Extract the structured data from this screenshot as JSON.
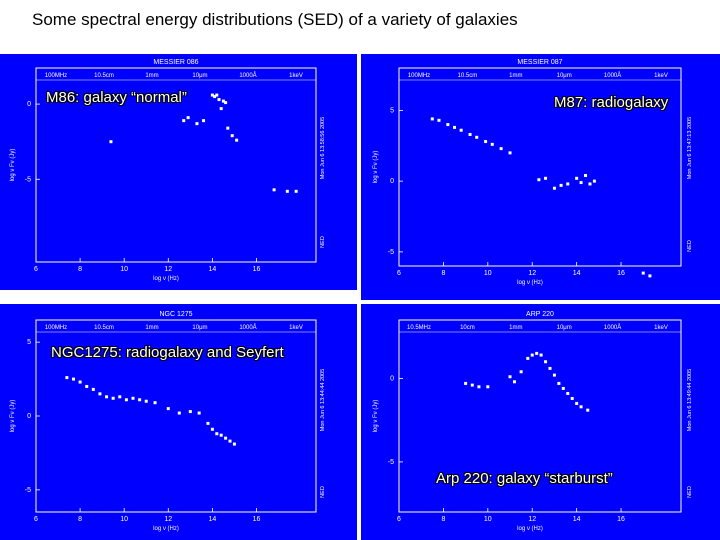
{
  "title": "Some spectral energy distributions (SED) of a variety of galaxies",
  "colors": {
    "panel_bg": "#0000ff",
    "ink": "#ffffff"
  },
  "chart_data": [
    {
      "type": "scatter",
      "label": "M86: galaxy “normal”",
      "header": "MESSIER 086",
      "top_axis": [
        "100MHz",
        "10.5cm",
        "1mm",
        "10μm",
        "1000Å",
        "1keV"
      ],
      "xlabel": "log ν (Hz)",
      "ylabel": "log ν Fν (Jy)",
      "side_text": [
        "Mon Jun 6 13:58:56 2005",
        "NED"
      ],
      "xticks": [
        6,
        8,
        10,
        12,
        14,
        16
      ],
      "yticks": [
        0,
        -5
      ],
      "xlim": [
        6,
        18.7
      ],
      "ylim": [
        -10.5,
        2.4
      ],
      "points": [
        [
          9.4,
          -2.5
        ],
        [
          12.7,
          -1.1
        ],
        [
          12.9,
          -0.9
        ],
        [
          13.3,
          -1.3
        ],
        [
          13.6,
          -1.1
        ],
        [
          14.0,
          0.6
        ],
        [
          14.1,
          0.5
        ],
        [
          14.2,
          0.6
        ],
        [
          14.3,
          0.3
        ],
        [
          14.4,
          -0.3
        ],
        [
          14.5,
          0.2
        ],
        [
          14.6,
          0.1
        ],
        [
          14.7,
          -1.6
        ],
        [
          14.9,
          -2.1
        ],
        [
          15.1,
          -2.4
        ],
        [
          16.8,
          -5.7
        ],
        [
          17.4,
          -5.8
        ],
        [
          17.8,
          -5.8
        ]
      ]
    },
    {
      "type": "scatter",
      "label": "M87: radiogalaxy",
      "header": "MESSIER 087",
      "top_axis": [
        "100MHz",
        "10.5cm",
        "1mm",
        "10μm",
        "1000Å",
        "1keV"
      ],
      "xlabel": "log ν (Hz)",
      "ylabel": "log ν Fν (Jy)",
      "side_text": [
        "Mon Jun 6 13:47:13 2005",
        "NED"
      ],
      "xticks": [
        6,
        8,
        10,
        12,
        14,
        16
      ],
      "yticks": [
        5,
        0,
        -5
      ],
      "xlim": [
        6,
        18.7
      ],
      "ylim": [
        -6,
        8
      ],
      "points": [
        [
          7.5,
          4.4
        ],
        [
          7.8,
          4.3
        ],
        [
          8.2,
          4.0
        ],
        [
          8.5,
          3.8
        ],
        [
          8.8,
          3.6
        ],
        [
          9.2,
          3.3
        ],
        [
          9.5,
          3.1
        ],
        [
          9.9,
          2.8
        ],
        [
          10.2,
          2.6
        ],
        [
          10.6,
          2.3
        ],
        [
          11.0,
          2.0
        ],
        [
          12.3,
          0.1
        ],
        [
          12.6,
          0.2
        ],
        [
          13.0,
          -0.5
        ],
        [
          13.3,
          -0.3
        ],
        [
          13.6,
          -0.2
        ],
        [
          14.0,
          0.2
        ],
        [
          14.2,
          -0.1
        ],
        [
          14.4,
          0.4
        ],
        [
          14.6,
          -0.2
        ],
        [
          14.8,
          0.0
        ],
        [
          17.0,
          -6.5
        ],
        [
          17.3,
          -6.7
        ]
      ]
    },
    {
      "type": "scatter",
      "label": "NGC1275: radiogalaxy and Seyfert",
      "header": "NGC 1275",
      "top_axis": [
        "100MHz",
        "10.5cm",
        "1mm",
        "10μm",
        "1000Å",
        "1keV"
      ],
      "xlabel": "log ν (Hz)",
      "ylabel": "log ν Fν (Jy)",
      "side_text": [
        "Mon Jun 6 13:44:44 2005",
        "NED"
      ],
      "xticks": [
        6,
        8,
        10,
        12,
        14,
        16
      ],
      "yticks": [
        5,
        0,
        -5
      ],
      "xlim": [
        6,
        18.7
      ],
      "ylim": [
        -6.5,
        6.5
      ],
      "points": [
        [
          7.4,
          2.6
        ],
        [
          7.7,
          2.5
        ],
        [
          8.0,
          2.3
        ],
        [
          8.3,
          2.0
        ],
        [
          8.6,
          1.8
        ],
        [
          8.9,
          1.5
        ],
        [
          9.2,
          1.3
        ],
        [
          9.5,
          1.2
        ],
        [
          9.8,
          1.3
        ],
        [
          10.1,
          1.1
        ],
        [
          10.4,
          1.2
        ],
        [
          10.7,
          1.1
        ],
        [
          11.0,
          1.0
        ],
        [
          11.4,
          0.9
        ],
        [
          12.0,
          0.5
        ],
        [
          12.5,
          0.2
        ],
        [
          13.0,
          0.3
        ],
        [
          13.4,
          0.2
        ],
        [
          13.8,
          -0.5
        ],
        [
          14.0,
          -0.9
        ],
        [
          14.2,
          -1.2
        ],
        [
          14.4,
          -1.3
        ],
        [
          14.6,
          -1.5
        ],
        [
          14.8,
          -1.7
        ],
        [
          15.0,
          -1.9
        ]
      ]
    },
    {
      "type": "scatter",
      "label": "Arp 220: galaxy “starburst”",
      "header": "ARP 220",
      "top_axis": [
        "10.5MHz",
        "10cm",
        "1mm",
        "10μm",
        "1000Å",
        "1keV"
      ],
      "xlabel": "log ν (Hz)",
      "ylabel": "log ν Fν (Jy)",
      "side_text": [
        "Mon Jun 6 13:49:44 2005",
        "NED"
      ],
      "xticks": [
        6,
        8,
        10,
        12,
        14,
        16
      ],
      "yticks": [
        0,
        -5
      ],
      "xlim": [
        6,
        18.7
      ],
      "ylim": [
        -8,
        3.5
      ],
      "points": [
        [
          9.0,
          -0.3
        ],
        [
          9.3,
          -0.4
        ],
        [
          9.6,
          -0.5
        ],
        [
          10.0,
          -0.5
        ],
        [
          11.0,
          0.1
        ],
        [
          11.2,
          -0.2
        ],
        [
          11.5,
          0.4
        ],
        [
          11.8,
          1.2
        ],
        [
          12.0,
          1.4
        ],
        [
          12.2,
          1.5
        ],
        [
          12.4,
          1.4
        ],
        [
          12.6,
          1.0
        ],
        [
          12.8,
          0.6
        ],
        [
          13.0,
          0.2
        ],
        [
          13.2,
          -0.3
        ],
        [
          13.4,
          -0.6
        ],
        [
          13.6,
          -0.9
        ],
        [
          13.8,
          -1.2
        ],
        [
          14.0,
          -1.5
        ],
        [
          14.2,
          -1.7
        ],
        [
          14.5,
          -1.9
        ]
      ]
    }
  ]
}
